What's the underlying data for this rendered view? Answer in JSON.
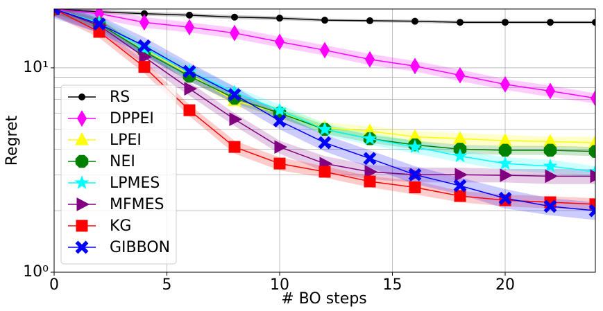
{
  "chart_data": {
    "type": "line",
    "xlabel": "# BO steps",
    "ylabel": "Regret",
    "x": [
      0,
      2,
      4,
      6,
      8,
      10,
      12,
      14,
      16,
      18,
      20,
      22,
      24
    ],
    "xlim": [
      0,
      24
    ],
    "xticks": [
      0,
      5,
      10,
      15,
      20
    ],
    "ylim": [
      1,
      19.4
    ],
    "log_y": true,
    "yticks": [
      {
        "value": 1,
        "label": "10⁰"
      },
      {
        "value": 10,
        "label": "10¹"
      }
    ],
    "yminorticks": [
      2,
      3,
      4,
      5,
      6,
      7,
      8,
      9
    ],
    "grid": true,
    "legend": "lower left",
    "series": [
      {
        "name": "RS",
        "color": "#000000",
        "marker": "circle",
        "values": [
          19.4,
          18.8,
          18.4,
          18.1,
          17.7,
          17.5,
          17.1,
          17.0,
          16.9,
          16.7,
          16.7,
          16.7,
          16.7
        ],
        "lower": [
          19.0,
          18.4,
          18.0,
          17.7,
          17.3,
          17.1,
          16.8,
          16.7,
          16.6,
          16.4,
          16.4,
          16.4,
          16.4
        ],
        "upper": [
          19.8,
          19.2,
          18.8,
          18.5,
          18.1,
          17.9,
          17.4,
          17.3,
          17.2,
          17.0,
          17.0,
          17.0,
          17.0
        ]
      },
      {
        "name": "DPPEI",
        "color": "#ff00ff",
        "marker": "thin_diamond",
        "values": [
          19.4,
          18.4,
          16.7,
          15.8,
          14.8,
          13.4,
          12.2,
          11.0,
          10.2,
          9.2,
          8.3,
          7.7,
          7.1
        ],
        "lower": [
          18.2,
          17.3,
          15.7,
          14.9,
          13.9,
          12.6,
          11.5,
          10.3,
          9.6,
          8.6,
          7.8,
          7.2,
          6.7
        ],
        "upper": [
          20.6,
          19.5,
          17.7,
          16.7,
          15.7,
          14.2,
          12.9,
          11.7,
          10.8,
          9.8,
          8.8,
          8.2,
          7.5
        ]
      },
      {
        "name": "LPEI",
        "color": "#ffff00",
        "marker": "triangle_up",
        "values": [
          19.4,
          16.6,
          12.3,
          9.3,
          6.9,
          6.0,
          5.1,
          4.9,
          4.6,
          4.5,
          4.4,
          4.36,
          4.3
        ],
        "lower": [
          18.2,
          15.6,
          11.6,
          8.7,
          6.5,
          5.6,
          4.8,
          4.6,
          4.3,
          4.2,
          4.1,
          4.1,
          4.0
        ],
        "upper": [
          20.6,
          17.6,
          13.0,
          9.9,
          7.3,
          6.4,
          5.4,
          5.2,
          4.9,
          4.8,
          4.7,
          4.6,
          4.6
        ]
      },
      {
        "name": "NEI",
        "color": "#008000",
        "marker": "octagon",
        "values": [
          19.4,
          16.4,
          12.0,
          9.1,
          7.1,
          6.0,
          5.0,
          4.5,
          4.2,
          4.0,
          3.95,
          3.95,
          3.9
        ],
        "lower": [
          18.4,
          15.6,
          11.4,
          8.6,
          6.7,
          5.7,
          4.75,
          4.3,
          4.0,
          3.8,
          3.75,
          3.75,
          3.7
        ],
        "upper": [
          20.4,
          17.2,
          12.6,
          9.6,
          7.5,
          6.3,
          5.25,
          4.7,
          4.4,
          4.2,
          4.15,
          4.15,
          4.1
        ]
      },
      {
        "name": "LPMES",
        "color": "#00ffff",
        "marker": "star",
        "values": [
          19.4,
          16.6,
          12.4,
          9.6,
          7.6,
          6.2,
          5.0,
          4.5,
          4.1,
          3.7,
          3.4,
          3.3,
          3.1
        ],
        "lower": [
          18.0,
          15.4,
          11.5,
          8.9,
          7.1,
          5.8,
          4.65,
          4.2,
          3.8,
          3.45,
          3.15,
          3.05,
          2.9
        ],
        "upper": [
          20.8,
          17.8,
          13.3,
          10.3,
          8.1,
          6.6,
          5.35,
          4.8,
          4.4,
          3.95,
          3.65,
          3.55,
          3.3
        ]
      },
      {
        "name": "MFMES",
        "color": "#800080",
        "marker": "triangle_right",
        "values": [
          19.4,
          16.1,
          11.3,
          7.9,
          5.6,
          4.1,
          3.4,
          3.1,
          3.0,
          3.0,
          2.98,
          2.95,
          2.95
        ],
        "lower": [
          17.8,
          14.8,
          10.4,
          7.3,
          5.2,
          3.8,
          3.1,
          2.85,
          2.75,
          2.75,
          2.75,
          2.7,
          2.7
        ],
        "upper": [
          21.0,
          17.4,
          12.2,
          8.5,
          6.0,
          4.4,
          3.7,
          3.35,
          3.25,
          3.25,
          3.2,
          3.2,
          3.2
        ]
      },
      {
        "name": "KG",
        "color": "#ff0000",
        "marker": "square",
        "values": [
          19.4,
          15.0,
          10.1,
          6.2,
          4.1,
          3.4,
          3.1,
          2.78,
          2.6,
          2.36,
          2.25,
          2.2,
          2.15
        ],
        "lower": [
          18.0,
          14.0,
          9.4,
          5.8,
          3.8,
          3.15,
          2.9,
          2.6,
          2.4,
          2.2,
          2.1,
          2.05,
          2.0
        ],
        "upper": [
          20.8,
          16.0,
          10.8,
          6.6,
          4.4,
          3.65,
          3.3,
          2.95,
          2.8,
          2.5,
          2.4,
          2.35,
          2.3
        ]
      },
      {
        "name": "GIBBON",
        "color": "#0000ff",
        "marker": "x",
        "values": [
          19.4,
          16.4,
          12.8,
          9.6,
          7.4,
          5.5,
          4.3,
          3.6,
          3.0,
          2.65,
          2.3,
          2.1,
          2.0
        ],
        "lower": [
          17.5,
          14.8,
          11.5,
          8.6,
          6.7,
          5.0,
          3.9,
          3.25,
          2.7,
          2.4,
          2.05,
          1.9,
          1.8
        ],
        "upper": [
          21.3,
          18.0,
          14.1,
          10.6,
          8.1,
          6.0,
          4.7,
          3.95,
          3.3,
          2.9,
          2.55,
          2.3,
          2.2
        ]
      }
    ]
  }
}
